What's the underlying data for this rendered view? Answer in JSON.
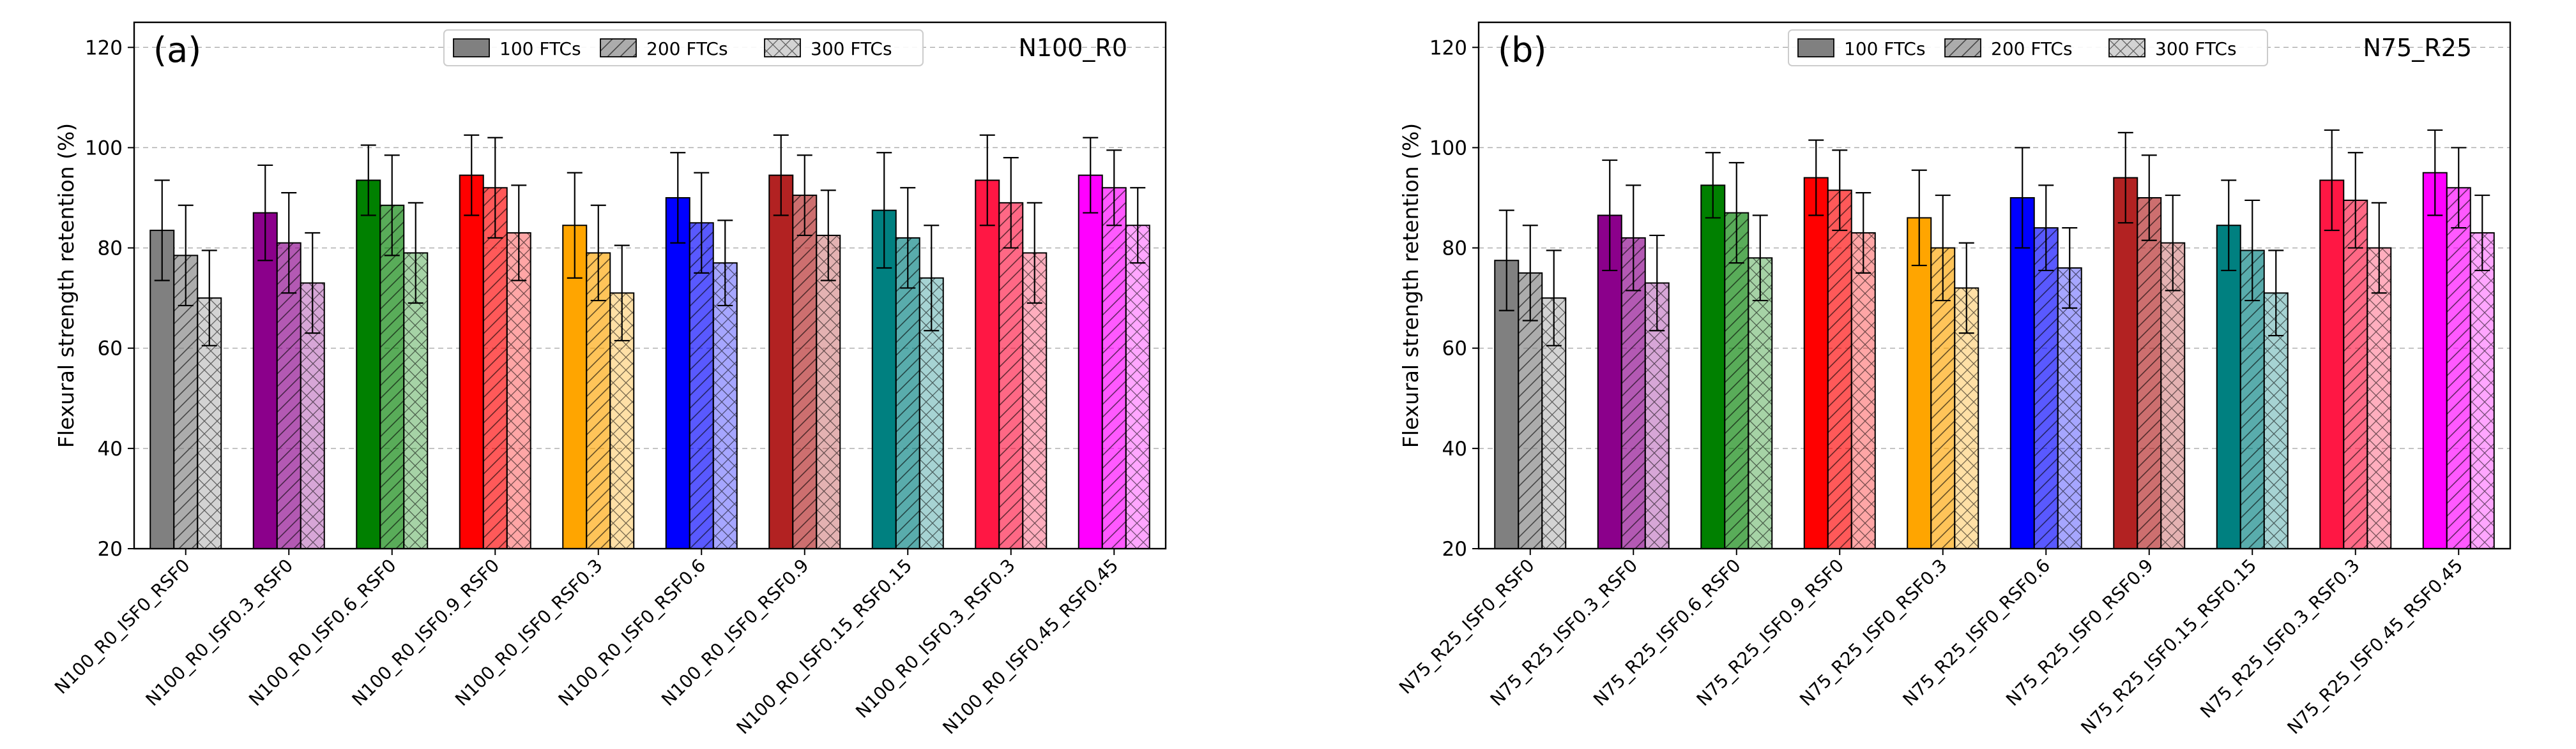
{
  "legend_entries": [
    "100 FTCs",
    "200 FTCs",
    "300 FTCs"
  ],
  "chart_data": [
    {
      "type": "bar",
      "panel_label": "(a)",
      "title": "N100_R0",
      "xlabel": "",
      "ylabel": "Flexural strength retention (%)",
      "ylim": [
        20,
        125
      ],
      "yticks": [
        20,
        40,
        60,
        80,
        100,
        120
      ],
      "grid": true,
      "legend_placement": "top-center",
      "categories": [
        "N100_R0_ISF0_RSF0",
        "N100_R0_ISF0.3_RSF0",
        "N100_R0_ISF0.6_RSF0",
        "N100_R0_ISF0.9_RSF0",
        "N100_R0_ISF0_RSF0.3",
        "N100_R0_ISF0_RSF0.6",
        "N100_R0_ISF0_RSF0.9",
        "N100_R0_ISF0.15_RSF0.15",
        "N100_R0_ISF0.3_RSF0.3",
        "N100_R0_ISF0.45_RSF0.45"
      ],
      "colors": [
        "#808080",
        "#8b008b",
        "#008000",
        "#ff0000",
        "#ffa500",
        "#0000ff",
        "#b22222",
        "#008080",
        "#ff1744",
        "#ff00ff"
      ],
      "series": [
        {
          "name": "100 FTCs",
          "pattern": "solid",
          "values": [
            83.5,
            87,
            93.5,
            94.5,
            84.5,
            90,
            94.5,
            87.5,
            93.5,
            94.5
          ],
          "errors": [
            10,
            9.5,
            7,
            8,
            10.5,
            9,
            8,
            11.5,
            9,
            7.5
          ]
        },
        {
          "name": "200 FTCs",
          "pattern": "diagonal",
          "values": [
            78.5,
            81,
            88.5,
            92,
            79,
            85,
            90.5,
            82,
            89,
            92
          ],
          "errors": [
            10,
            10,
            10,
            10,
            9.5,
            10,
            8,
            10,
            9,
            7.5
          ]
        },
        {
          "name": "300 FTCs",
          "pattern": "crosshatch",
          "values": [
            70,
            73,
            79,
            83,
            71,
            77,
            82.5,
            74,
            79,
            84.5
          ],
          "errors": [
            9.5,
            10,
            10,
            9.5,
            9.5,
            8.5,
            9,
            10.5,
            10,
            7.5
          ]
        }
      ]
    },
    {
      "type": "bar",
      "panel_label": "(b)",
      "title": "N75_R25",
      "xlabel": "",
      "ylabel": "Flexural strength retention (%)",
      "ylim": [
        20,
        125
      ],
      "yticks": [
        20,
        40,
        60,
        80,
        100,
        120
      ],
      "grid": true,
      "legend_placement": "top-center",
      "categories": [
        "N75_R25_ISF0_RSF0",
        "N75_R25_ISF0.3_RSF0",
        "N75_R25_ISF0.6_RSF0",
        "N75_R25_ISF0.9_RSF0",
        "N75_R25_ISF0_RSF0.3",
        "N75_R25_ISF0_RSF0.6",
        "N75_R25_ISF0_RSF0.9",
        "N75_R25_ISF0.15_RSF0.15",
        "N75_R25_ISF0.3_RSF0.3",
        "N75_R25_ISF0.45_RSF0.45"
      ],
      "colors": [
        "#808080",
        "#8b008b",
        "#008000",
        "#ff0000",
        "#ffa500",
        "#0000ff",
        "#b22222",
        "#008080",
        "#ff1744",
        "#ff00ff"
      ],
      "series": [
        {
          "name": "100 FTCs",
          "pattern": "solid",
          "values": [
            77.5,
            86.5,
            92.5,
            94,
            86,
            90,
            94,
            84.5,
            93.5,
            95
          ],
          "errors": [
            10,
            11,
            6.5,
            7.5,
            9.5,
            10,
            9,
            9,
            10,
            8.5
          ]
        },
        {
          "name": "200 FTCs",
          "pattern": "diagonal",
          "values": [
            75,
            82,
            87,
            91.5,
            80,
            84,
            90,
            79.5,
            89.5,
            92
          ],
          "errors": [
            9.5,
            10.5,
            10,
            8,
            10.5,
            8.5,
            8.5,
            10,
            9.5,
            8
          ]
        },
        {
          "name": "300 FTCs",
          "pattern": "crosshatch",
          "values": [
            70,
            73,
            78,
            83,
            72,
            76,
            81,
            71,
            80,
            83
          ],
          "errors": [
            9.5,
            9.5,
            8.5,
            8,
            9,
            8,
            9.5,
            8.5,
            9,
            7.5
          ]
        }
      ]
    }
  ]
}
